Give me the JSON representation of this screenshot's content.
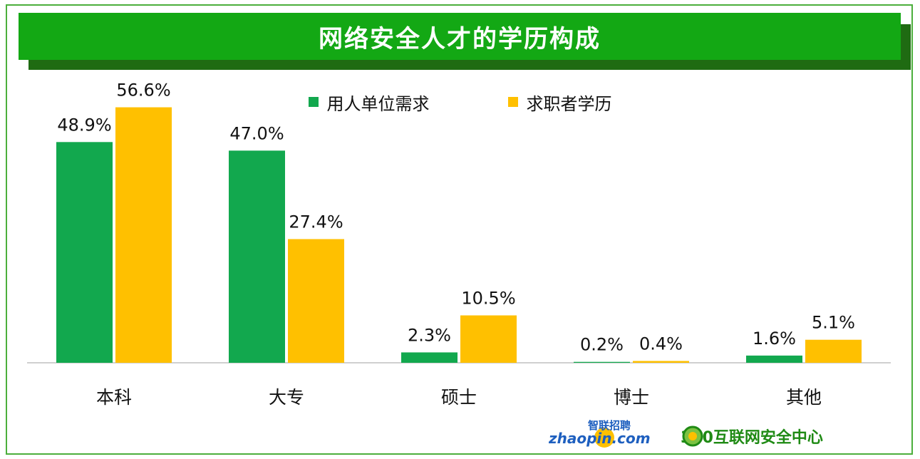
{
  "title": "网络安全人才的学历构成",
  "colors": {
    "green": "#12a84e",
    "yellow": "#ffc000",
    "banner": "#13a814"
  },
  "chart_data": {
    "type": "bar",
    "categories": [
      "本科",
      "大专",
      "硕士",
      "博士",
      "其他"
    ],
    "series": [
      {
        "name": "用人单位需求",
        "color": "#12a84e",
        "values": [
          48.9,
          47.0,
          2.3,
          0.2,
          1.6
        ],
        "labels": [
          "48.9%",
          "47.0%",
          "2.3%",
          "0.2%",
          "1.6%"
        ]
      },
      {
        "name": "求职者学历",
        "color": "#ffc000",
        "values": [
          56.6,
          27.4,
          10.5,
          0.4,
          5.1
        ],
        "labels": [
          "56.6%",
          "27.4%",
          "10.5%",
          "0.4%",
          "5.1%"
        ]
      }
    ],
    "ylim": [
      0,
      60
    ],
    "legend": "top-center",
    "grid": false
  },
  "logos": {
    "zhaopin_cn": "智联招聘",
    "zhaopin_en": "zhaopin.com",
    "center_text": "360互联网安全中心"
  }
}
